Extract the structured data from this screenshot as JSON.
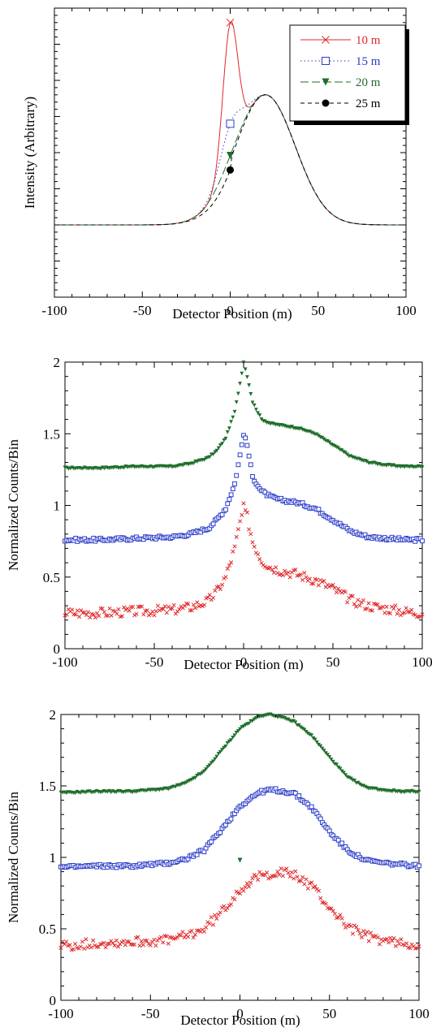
{
  "colors": {
    "red": "#e0282a",
    "blue": "#2a3cc8",
    "green": "#1f6e2a",
    "black": "#000000"
  },
  "chart_data": [
    {
      "type": "line",
      "xlabel": "Detector Position (m)",
      "ylabel": "Intensity (Arbitrary)",
      "xlim": [
        -100,
        100
      ],
      "xticks": [
        "-100",
        "-50",
        "0",
        "50",
        "100"
      ],
      "ylim": [
        0,
        1
      ],
      "grid": false,
      "legend_position": "top-right",
      "series": [
        {
          "name": "10 m",
          "color": "#e0282a",
          "dash": "solid",
          "marker": "x",
          "peak": 0.95
        },
        {
          "name": "15 m",
          "color": "#2a3cc8",
          "dash": "dot",
          "marker": "square",
          "peak": 0.6
        },
        {
          "name": "20 m",
          "color": "#1f6e2a",
          "dash": "longdash",
          "marker": "triangle-down",
          "peak": 0.49
        },
        {
          "name": "25 m",
          "color": "#000000",
          "dash": "dash",
          "marker": "circle",
          "peak": 0.44
        }
      ]
    },
    {
      "type": "scatter",
      "xlabel": "Detector Position (m)",
      "ylabel": "Normalized Counts/Bin",
      "xlim": [
        -100,
        100
      ],
      "xticks": [
        "-100",
        "-50",
        "0",
        "50",
        "100"
      ],
      "ylim": [
        0,
        2
      ],
      "yticks": [
        "0",
        "0.5",
        "1",
        "1.5",
        "2"
      ],
      "grid": false,
      "series": [
        {
          "marker": "triangle-down",
          "color": "#1f6e2a",
          "x": [
            -100,
            -80,
            -60,
            -40,
            -30,
            -20,
            -15,
            -10,
            -5,
            -2,
            0,
            2,
            5,
            10,
            15,
            20,
            30,
            40,
            50,
            60,
            70,
            80,
            90,
            100
          ],
          "y": [
            1.26,
            1.26,
            1.27,
            1.27,
            1.29,
            1.33,
            1.38,
            1.47,
            1.65,
            1.85,
            2.0,
            1.9,
            1.72,
            1.6,
            1.57,
            1.56,
            1.54,
            1.5,
            1.42,
            1.34,
            1.3,
            1.28,
            1.27,
            1.27
          ]
        },
        {
          "marker": "square",
          "color": "#2a3cc8",
          "x": [
            -100,
            -80,
            -60,
            -40,
            -30,
            -20,
            -15,
            -10,
            -5,
            -2,
            0,
            2,
            5,
            10,
            15,
            20,
            30,
            40,
            50,
            60,
            70,
            80,
            90,
            100
          ],
          "y": [
            0.76,
            0.76,
            0.77,
            0.78,
            0.8,
            0.84,
            0.9,
            0.98,
            1.15,
            1.35,
            1.5,
            1.42,
            1.2,
            1.1,
            1.06,
            1.04,
            1.02,
            0.98,
            0.9,
            0.82,
            0.78,
            0.77,
            0.76,
            0.76
          ]
        },
        {
          "marker": "x",
          "color": "#e0282a",
          "x": [
            -100,
            -80,
            -60,
            -40,
            -30,
            -20,
            -15,
            -10,
            -5,
            -2,
            0,
            2,
            5,
            10,
            15,
            20,
            30,
            40,
            50,
            60,
            70,
            80,
            90,
            100
          ],
          "y": [
            0.25,
            0.25,
            0.26,
            0.27,
            0.29,
            0.33,
            0.4,
            0.5,
            0.7,
            0.88,
            0.98,
            0.92,
            0.75,
            0.62,
            0.57,
            0.55,
            0.52,
            0.48,
            0.42,
            0.34,
            0.3,
            0.28,
            0.26,
            0.25
          ]
        }
      ]
    },
    {
      "type": "scatter",
      "xlabel": "Detector Position (m)",
      "ylabel": "Normalized Counts/Bin",
      "xlim": [
        -100,
        100
      ],
      "xticks": [
        "-100",
        "-50",
        "0",
        "50",
        "100"
      ],
      "ylim": [
        0,
        2
      ],
      "yticks": [
        "0",
        "0.5",
        "1",
        "1.5",
        "2"
      ],
      "grid": false,
      "series": [
        {
          "marker": "triangle-down",
          "color": "#1f6e2a",
          "x": [
            -100,
            -80,
            -60,
            -40,
            -30,
            -20,
            -10,
            0,
            10,
            15,
            20,
            30,
            40,
            50,
            60,
            70,
            80,
            90,
            100
          ],
          "y": [
            1.45,
            1.46,
            1.46,
            1.48,
            1.52,
            1.6,
            1.75,
            1.9,
            1.98,
            2.0,
            1.99,
            1.95,
            1.85,
            1.7,
            1.56,
            1.49,
            1.47,
            1.46,
            1.46
          ]
        },
        {
          "marker": "square",
          "color": "#2a3cc8",
          "x": [
            -100,
            -80,
            -60,
            -40,
            -30,
            -20,
            -10,
            0,
            10,
            15,
            20,
            30,
            40,
            50,
            60,
            70,
            80,
            90,
            100
          ],
          "y": [
            0.93,
            0.94,
            0.94,
            0.96,
            0.99,
            1.05,
            1.2,
            1.36,
            1.45,
            1.47,
            1.47,
            1.45,
            1.35,
            1.18,
            1.05,
            0.98,
            0.96,
            0.95,
            0.94
          ]
        },
        {
          "marker": "x",
          "color": "#e0282a",
          "x": [
            -100,
            -80,
            -60,
            -40,
            -30,
            -20,
            -10,
            0,
            10,
            15,
            20,
            30,
            40,
            50,
            60,
            70,
            80,
            90,
            100
          ],
          "y": [
            0.38,
            0.4,
            0.41,
            0.42,
            0.45,
            0.5,
            0.62,
            0.78,
            0.86,
            0.88,
            0.9,
            0.88,
            0.8,
            0.65,
            0.52,
            0.45,
            0.42,
            0.4,
            0.39
          ]
        },
        {
          "marker": "triangle-down",
          "color": "#1f6e2a",
          "x": [
            0
          ],
          "y": [
            0.98
          ]
        }
      ]
    }
  ]
}
